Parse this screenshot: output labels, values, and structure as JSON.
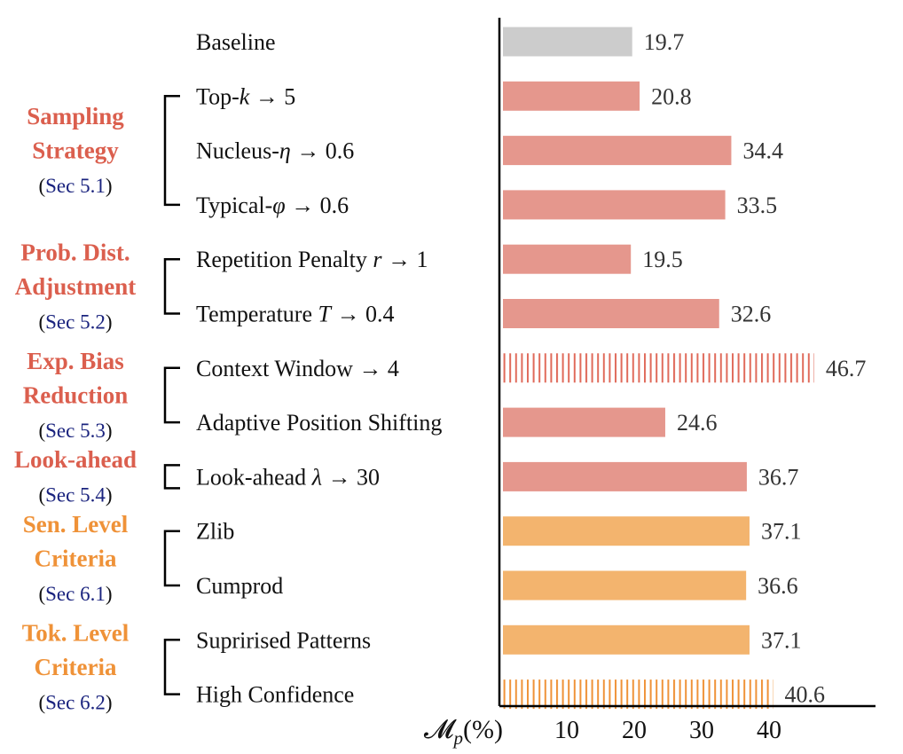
{
  "chart_data": {
    "type": "bar",
    "orientation": "horizontal",
    "xlabel": "𝓜p(%)",
    "xticks": [
      10,
      20,
      30,
      40
    ],
    "xlim": [
      0,
      54.5
    ],
    "categories": [
      "Baseline",
      "Top-k → 5",
      "Nucleus-η → 0.6",
      "Typical-φ → 0.6",
      "Repetition Penalty r → 1",
      "Temperature T → 0.4",
      "Context Window → 4",
      "Adaptive Position Shifting",
      "Look-ahead λ → 30",
      "Zlib",
      "Cumprod",
      "Suprirised Patterns",
      "High Confidence"
    ],
    "values": [
      19.7,
      20.8,
      34.4,
      33.5,
      19.5,
      32.6,
      46.7,
      24.6,
      36.7,
      37.1,
      36.6,
      37.1,
      40.6
    ],
    "value_labels": [
      "19.7",
      "20.8",
      "34.4",
      "33.5",
      "19.5",
      "32.6",
      "46.7",
      "24.6",
      "36.7",
      "37.1",
      "36.6",
      "37.1",
      "40.6"
    ],
    "bar_colors": [
      "#cccccc",
      "#e5978d",
      "#e5978d",
      "#e5978d",
      "#e5978d",
      "#e5978d",
      "#e06a5a",
      "#e5978d",
      "#e5978d",
      "#f3b46e",
      "#f3b46e",
      "#f3b46e",
      "#ef9238"
    ],
    "bar_styles": [
      "solid",
      "solid",
      "solid",
      "solid",
      "solid",
      "solid",
      "hatched",
      "solid",
      "solid",
      "solid",
      "solid",
      "solid",
      "hatched"
    ],
    "groups": [
      {
        "title_lines": [
          "Sampling",
          "Strategy"
        ],
        "section": "Sec 5.1",
        "color": "#db5f4e",
        "first": 1,
        "last": 3
      },
      {
        "title_lines": [
          "Prob. Dist.",
          "Adjustment"
        ],
        "section": "Sec 5.2",
        "color": "#db5f4e",
        "first": 4,
        "last": 5
      },
      {
        "title_lines": [
          "Exp. Bias",
          "Reduction"
        ],
        "section": "Sec 5.3",
        "color": "#db5f4e",
        "first": 6,
        "last": 7
      },
      {
        "title_lines": [
          "Look-ahead"
        ],
        "section": "Sec 5.4",
        "color": "#db5f4e",
        "first": 8,
        "last": 8
      },
      {
        "title_lines": [
          "Sen. Level",
          "Criteria"
        ],
        "section": "Sec 6.1",
        "color": "#ef9238",
        "first": 9,
        "last": 10
      },
      {
        "title_lines": [
          "Tok. Level",
          "Criteria"
        ],
        "section": "Sec 6.2",
        "color": "#ef9238",
        "first": 11,
        "last": 12
      }
    ]
  }
}
